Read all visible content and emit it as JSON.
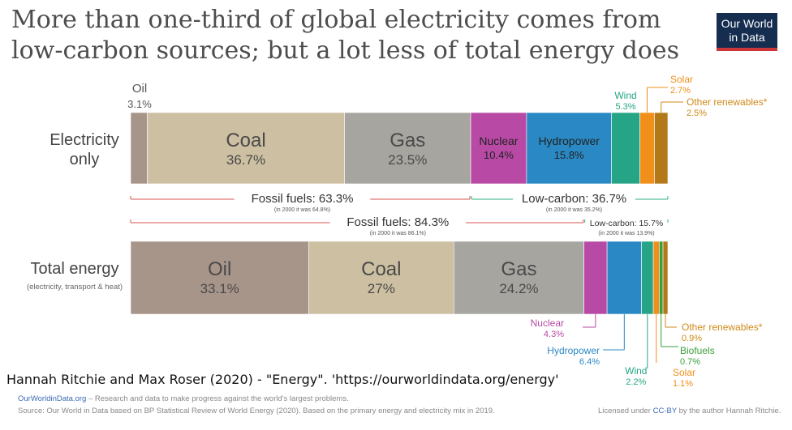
{
  "title_lines": [
    "More than one-third of global electricity comes from",
    "low-carbon sources; but a lot less of total energy does"
  ],
  "logo_lines": [
    "Our World",
    "in Data"
  ],
  "citation": "Hannah Ritchie and Max Roser (2020) - \"Energy\". 'https://ourworldindata.org/energy'",
  "footer": {
    "site": "OurWorldinData.org",
    "tagline": " – Research and data to make progress against the world's largest problems.",
    "source": "Source: Our World in Data based on BP Statistical Review of World Energy (2020). Based on the primary energy and electricity mix in 2019.",
    "license_prefix": "Licensed under ",
    "license_link": "CC-BY",
    "license_suffix": " by the author Hannah Ritchie."
  },
  "chart_data": {
    "type": "bar",
    "stacked": true,
    "orientation": "horizontal",
    "unit": "%",
    "bars": [
      {
        "label_lines": [
          "Electricity",
          "only"
        ],
        "sublabel": "",
        "segments": [
          {
            "name": "Oil",
            "value": 3.1,
            "color": "#a8958a"
          },
          {
            "name": "Coal",
            "value": 36.7,
            "color": "#cdbfa1"
          },
          {
            "name": "Gas",
            "value": 23.5,
            "color": "#a6a5a0"
          },
          {
            "name": "Nuclear",
            "value": 10.4,
            "color": "#b84aa6"
          },
          {
            "name": "Hydropower",
            "value": 15.8,
            "color": "#2a88c4"
          },
          {
            "name": "Wind",
            "value": 5.3,
            "color": "#25a585"
          },
          {
            "name": "Solar",
            "value": 2.7,
            "color": "#f08f1a"
          },
          {
            "name": "Other renewables*",
            "value": 2.5,
            "color": "#b37919"
          }
        ]
      },
      {
        "label_lines": [
          "Total energy"
        ],
        "sublabel": "(electricity, transport & heat)",
        "segments": [
          {
            "name": "Oil",
            "value": 33.1,
            "color": "#a8958a"
          },
          {
            "name": "Coal",
            "value": 27,
            "color": "#cdbfa1"
          },
          {
            "name": "Gas",
            "value": 24.2,
            "color": "#a6a5a0"
          },
          {
            "name": "Nuclear",
            "value": 4.3,
            "color": "#b84aa6"
          },
          {
            "name": "Hydropower",
            "value": 6.4,
            "color": "#2a88c4"
          },
          {
            "name": "Wind",
            "value": 2.2,
            "color": "#25a585"
          },
          {
            "name": "Solar",
            "value": 1.1,
            "color": "#f08f1a"
          },
          {
            "name": "Biofuels",
            "value": 0.7,
            "color": "#3a9e3a"
          },
          {
            "name": "Other renewables*",
            "value": 0.9,
            "color": "#b37919"
          }
        ]
      }
    ],
    "annotations": [
      {
        "bar": 0,
        "group": "fossil",
        "text": "Fossil fuels: 63.3%",
        "note": "(in 2000 it was 64.8%)",
        "color": "#d9534f"
      },
      {
        "bar": 0,
        "group": "low_carbon",
        "text": "Low-carbon: 36.7%",
        "note": "(in 2000 it was 35.2%)",
        "color": "#2bb07f"
      },
      {
        "bar": 1,
        "group": "fossil",
        "text": "Fossil fuels: 84.3%",
        "note": "(in 2000 it was 86.1%)",
        "color": "#d9534f"
      },
      {
        "bar": 1,
        "group": "low_carbon",
        "text": "Low-carbon: 15.7%",
        "note": "(in 2000 it was 13.9%)",
        "color": "#2bb07f"
      }
    ]
  }
}
